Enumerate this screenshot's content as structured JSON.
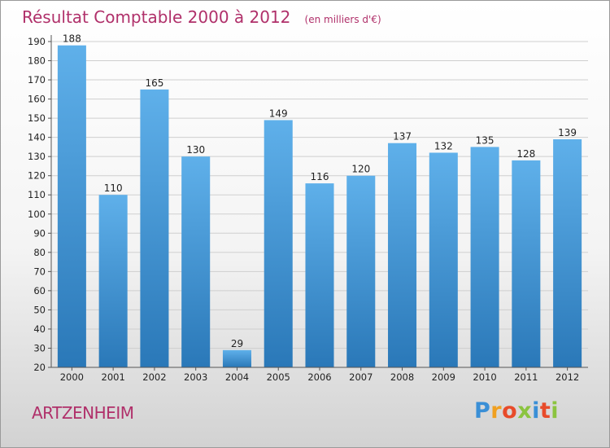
{
  "chart_data": {
    "type": "bar",
    "title": "Résultat Comptable 2000 à 2012",
    "unit_note": "(en milliers d'€)",
    "categories": [
      "2000",
      "2001",
      "2002",
      "2003",
      "2004",
      "2005",
      "2006",
      "2007",
      "2008",
      "2009",
      "2010",
      "2011",
      "2012"
    ],
    "values": [
      188,
      110,
      165,
      130,
      29,
      149,
      116,
      120,
      137,
      132,
      135,
      128,
      139
    ],
    "ylim": [
      20,
      190
    ],
    "yticks": [
      20,
      30,
      40,
      50,
      60,
      70,
      80,
      90,
      100,
      110,
      120,
      130,
      140,
      150,
      160,
      170,
      180,
      190
    ],
    "grid": true,
    "bar_color_top": "#5fb0ea",
    "bar_color_bottom": "#2a78b8"
  },
  "place_name": "ARTZENHEIM",
  "logo": {
    "letters": [
      "P",
      "r",
      "o",
      "x",
      "i",
      "t",
      "i"
    ],
    "colors": [
      "#3a8fd6",
      "#f0a020",
      "#e84b2a",
      "#8bc43f",
      "#3a8fd6",
      "#e84b2a",
      "#8bc43f"
    ]
  }
}
